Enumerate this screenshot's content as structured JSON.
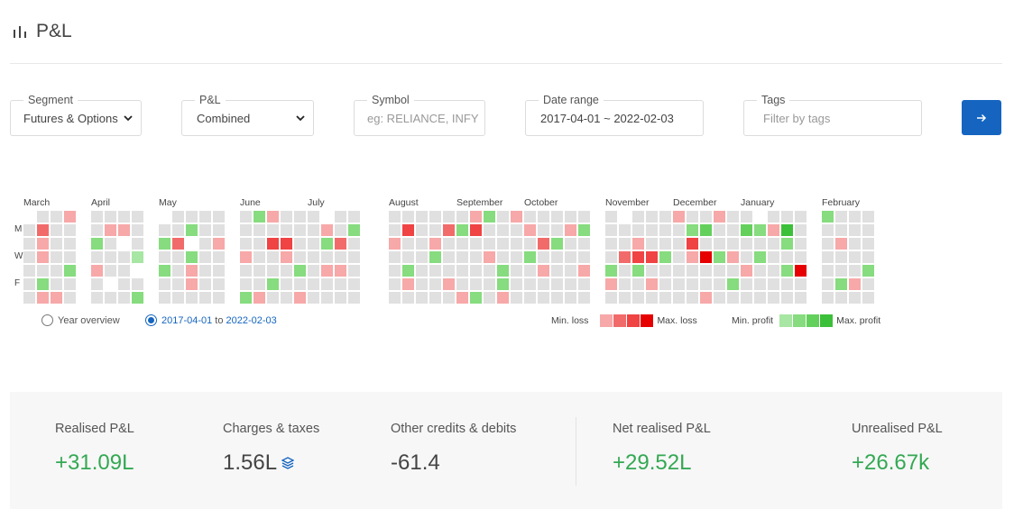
{
  "header": {
    "title": "P&L",
    "icon": "bar-chart-icon"
  },
  "filters": {
    "segment": {
      "label": "Segment",
      "value": "Futures & Options"
    },
    "pnl": {
      "label": "P&L",
      "value": "Combined"
    },
    "symbol": {
      "label": "Symbol",
      "placeholder": "eg: RELIANCE, INFY"
    },
    "date_range": {
      "label": "Date range",
      "value": "2017-04-01 ~ 2022-02-03"
    },
    "tags": {
      "label": "Tags",
      "placeholder": "Filter by tags"
    },
    "go_icon": "arrow-right-icon"
  },
  "heatmap": {
    "months": [
      "March",
      "April",
      "May",
      "June",
      "July",
      "August",
      "September",
      "October",
      "November",
      "December",
      "January",
      "February"
    ],
    "day_labels": [
      "M",
      "W",
      "F"
    ],
    "colors": {
      "empty": "#e0e0e0",
      "loss": [
        "#f7a8a8",
        "#f26b6b",
        "#f04343",
        "#e60000"
      ],
      "profit": [
        "#a8e6a3",
        "#86dc7e",
        "#64d05c",
        "#3cc03a"
      ]
    },
    "weeks": [
      "0111111",
      "1121112",
      "1111111",
      "1111111",
      "1111111",
      "1111101",
      "1101111",
      "1113011",
      "0111111",
      "1111111",
      "1201211",
      "1111111",
      "1111111",
      "1111111",
      "1111111",
      "1111111",
      "1111111",
      "1111111",
      "1111111",
      "0111111",
      "1111111",
      "1111111",
      "1111111",
      "1111111",
      "1111111",
      "1111111",
      "1111111",
      "1111111",
      "1111111",
      "1111111",
      "1111111",
      "1111111",
      "1111111",
      "1111111",
      "1111111",
      "1111111",
      "1111111",
      "1111111",
      "0111111",
      "1111111",
      "1111111",
      "1111111",
      "1111111",
      "1111111",
      "1111111",
      "1111111",
      "1111111",
      "1111111",
      "0111111",
      "1111111",
      "1111111",
      "1111111",
      "1111111",
      "1111111",
      "1111111",
      "1111111",
      "1111111"
    ]
  },
  "range_options": {
    "year_overview": "Year overview",
    "range_from": "2017-04-01",
    "range_to_word": "to",
    "range_to": "2022-02-03",
    "selected": "range"
  },
  "legend": {
    "min_loss": "Min. loss",
    "max_loss": "Max. loss",
    "min_profit": "Min. profit",
    "max_profit": "Max. profit"
  },
  "summary": {
    "realised_label": "Realised P&L",
    "realised_value": "+31.09L",
    "charges_label": "Charges & taxes",
    "charges_value": "1.56L",
    "charges_icon": "layers-icon",
    "other_label": "Other credits & debits",
    "other_value": "-61.4",
    "net_label": "Net realised P&L",
    "net_value": "+29.52L",
    "unrealised_label": "Unrealised P&L",
    "unrealised_value": "+26.67k",
    "positive_color": "#34a853",
    "neutral_color": "#444444"
  }
}
